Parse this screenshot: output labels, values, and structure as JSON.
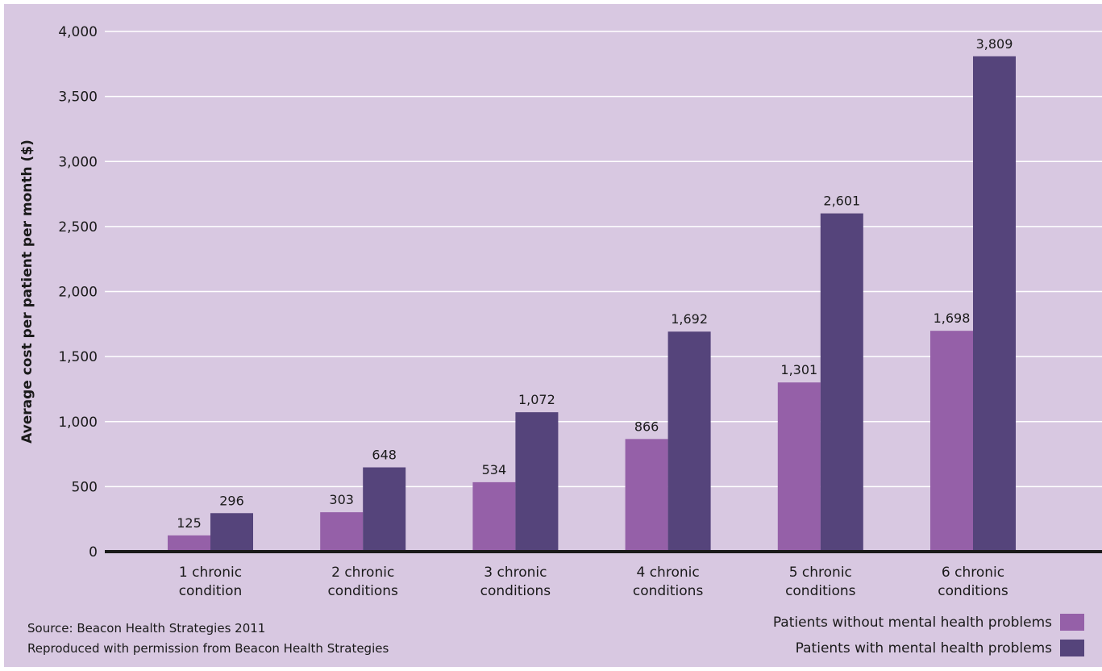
{
  "source": {
    "line1": "Source: Beacon Health Strategies 2011",
    "line2": "Reproduced with permission from Beacon Health Strategies"
  },
  "chart_data": {
    "type": "bar",
    "title": "",
    "xlabel": "",
    "ylabel": "Average cost per patient per month ($)",
    "ylim": [
      0,
      4000
    ],
    "yticks": [
      0,
      500,
      1000,
      1500,
      2000,
      2500,
      3000,
      3500,
      4000
    ],
    "ytick_labels": [
      "0",
      "500",
      "1,000",
      "1,500",
      "2,000",
      "2,500",
      "3,000",
      "3,500",
      "4,000"
    ],
    "categories": [
      [
        "1 chronic",
        "condition"
      ],
      [
        "2 chronic",
        "conditions"
      ],
      [
        "3 chronic",
        "conditions"
      ],
      [
        "4 chronic",
        "conditions"
      ],
      [
        "5 chronic",
        "conditions"
      ],
      [
        "6 chronic",
        "conditions"
      ]
    ],
    "series": [
      {
        "name": "Patients without mental health problems",
        "color": "#9560a8",
        "values": [
          125,
          303,
          534,
          866,
          1301,
          1698
        ],
        "labels": [
          "125",
          "303",
          "534",
          "866",
          "1,301",
          "1,698"
        ]
      },
      {
        "name": "Patients with mental health problems",
        "color": "#55447b",
        "values": [
          296,
          648,
          1072,
          1692,
          2601,
          3809
        ],
        "labels": [
          "296",
          "648",
          "1,072",
          "1,692",
          "2,601",
          "3,809"
        ]
      }
    ],
    "grid": true,
    "legend_position": "bottom-right"
  }
}
